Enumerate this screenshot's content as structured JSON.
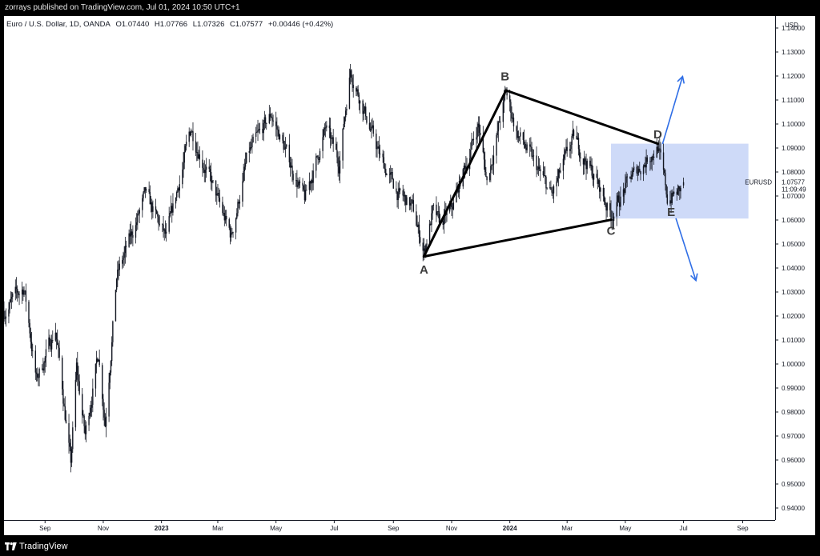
{
  "header": {
    "published_text": "zorrays published on TradingView.com, Jul 01, 2024 10:50 UTC+1"
  },
  "legend": {
    "symbol": "Euro / U.S. Dollar, 1D, OANDA",
    "open": "O1.07440",
    "high": "H1.07766",
    "low": "L1.07326",
    "close": "C1.07577",
    "change": "+0.00446 (+0.42%)"
  },
  "price_scale": {
    "currency": "USD",
    "ticker": "EURUSD",
    "last_price": "1.07577",
    "countdown": "11:09:49"
  },
  "footer": {
    "brand": "TradingView"
  },
  "colors": {
    "candle": "#131722",
    "zone_fill": "#c5d3f7",
    "arrow": "#2f6ee6",
    "line": "#000000",
    "wave_label": "#3d3d3d"
  },
  "chart_data": {
    "type": "candlestick",
    "symbol": "EURUSD",
    "timeframe": "1D",
    "ylim": [
      0.935,
      1.145
    ],
    "y_ticks": [
      "1.14000",
      "1.13000",
      "1.12000",
      "1.11000",
      "1.10000",
      "1.09000",
      "1.08000",
      "1.07000",
      "1.06000",
      "1.05000",
      "1.04000",
      "1.03000",
      "1.02000",
      "1.01000",
      "1.00000",
      "0.99000",
      "0.98000",
      "0.97000",
      "0.96000",
      "0.95000",
      "0.94000"
    ],
    "x_ticks": [
      {
        "label": "Sep",
        "date": "2022-09-01",
        "bold": false
      },
      {
        "label": "Nov",
        "date": "2022-11-01",
        "bold": false
      },
      {
        "label": "2023",
        "date": "2023-01-01",
        "bold": true
      },
      {
        "label": "Mar",
        "date": "2023-03-01",
        "bold": false
      },
      {
        "label": "May",
        "date": "2023-05-01",
        "bold": false
      },
      {
        "label": "Jul",
        "date": "2023-07-01",
        "bold": false
      },
      {
        "label": "Sep",
        "date": "2023-09-01",
        "bold": false
      },
      {
        "label": "Nov",
        "date": "2023-11-01",
        "bold": false
      },
      {
        "label": "2024",
        "date": "2024-01-01",
        "bold": true
      },
      {
        "label": "Mar",
        "date": "2024-03-01",
        "bold": false
      },
      {
        "label": "May",
        "date": "2024-05-01",
        "bold": false
      },
      {
        "label": "Jul",
        "date": "2024-07-01",
        "bold": false
      },
      {
        "label": "Sep",
        "date": "2024-09-01",
        "bold": false
      }
    ],
    "xlim": [
      "2022-07-20",
      "2024-10-05"
    ],
    "price_path": [
      [
        "2022-07-20",
        1.022
      ],
      [
        "2022-08-10",
        1.032
      ],
      [
        "2022-08-23",
        0.993
      ],
      [
        "2022-09-12",
        1.015
      ],
      [
        "2022-09-28",
        0.958
      ],
      [
        "2022-10-04",
        0.998
      ],
      [
        "2022-10-13",
        0.97
      ],
      [
        "2022-10-27",
        1.005
      ],
      [
        "2022-11-03",
        0.976
      ],
      [
        "2022-11-15",
        1.036
      ],
      [
        "2022-12-15",
        1.07
      ],
      [
        "2023-01-06",
        1.052
      ],
      [
        "2023-02-01",
        1.098
      ],
      [
        "2023-03-15",
        1.053
      ],
      [
        "2023-04-01",
        1.086
      ],
      [
        "2023-04-26",
        1.104
      ],
      [
        "2023-05-31",
        1.068
      ],
      [
        "2023-06-22",
        1.098
      ],
      [
        "2023-07-06",
        1.084
      ],
      [
        "2023-07-18",
        1.123
      ],
      [
        "2023-08-18",
        1.086
      ],
      [
        "2023-09-07",
        1.07
      ],
      [
        "2023-09-20",
        1.066
      ],
      [
        "2023-10-03",
        1.047
      ],
      [
        "2023-10-12",
        1.063
      ],
      [
        "2023-10-20",
        1.058
      ],
      [
        "2023-11-01",
        1.064
      ],
      [
        "2023-11-29",
        1.1
      ],
      [
        "2023-12-08",
        1.076
      ],
      [
        "2023-12-28",
        1.113
      ],
      [
        "2024-01-08",
        1.097
      ],
      [
        "2024-02-14",
        1.07
      ],
      [
        "2024-03-08",
        1.094
      ],
      [
        "2024-03-19",
        1.086
      ],
      [
        "2024-04-01",
        1.076
      ],
      [
        "2024-04-16",
        1.062
      ],
      [
        "2024-05-06",
        1.077
      ],
      [
        "2024-06-04",
        1.091
      ],
      [
        "2024-06-14",
        1.069
      ],
      [
        "2024-06-28",
        1.072
      ],
      [
        "2024-07-01",
        1.07577
      ]
    ],
    "last_candle": {
      "date": "2024-07-01",
      "open": 1.0744,
      "high": 1.07766,
      "low": 1.07326,
      "close": 1.07577
    },
    "trendlines": [
      {
        "from": [
          "2023-10-03",
          1.0448
        ],
        "to": [
          "2023-12-28",
          1.114
        ]
      },
      {
        "from": [
          "2023-12-28",
          1.114
        ],
        "to": [
          "2024-06-04",
          1.0918
        ]
      },
      {
        "from": [
          "2023-10-03",
          1.0448
        ],
        "to": [
          "2024-04-16",
          1.0601
        ]
      }
    ],
    "zone": {
      "from_date": "2024-04-16",
      "to_date": "2024-09-07",
      "top": 1.0918,
      "bottom": 1.0606
    },
    "arrows": [
      {
        "from": [
          "2024-06-09",
          1.0917
        ],
        "to": [
          "2024-06-30",
          1.1198
        ]
      },
      {
        "from": [
          "2024-06-23",
          1.0607
        ],
        "to": [
          "2024-07-14",
          1.0348
        ]
      }
    ],
    "wave_labels": [
      {
        "text": "A",
        "date": "2023-10-03",
        "price": 1.039
      },
      {
        "text": "B",
        "date": "2023-12-27",
        "price": 1.1195
      },
      {
        "text": "C",
        "date": "2024-04-16",
        "price": 1.0552
      },
      {
        "text": "D",
        "date": "2024-06-04",
        "price": 1.0954
      },
      {
        "text": "E",
        "date": "2024-06-18",
        "price": 1.063
      }
    ]
  }
}
